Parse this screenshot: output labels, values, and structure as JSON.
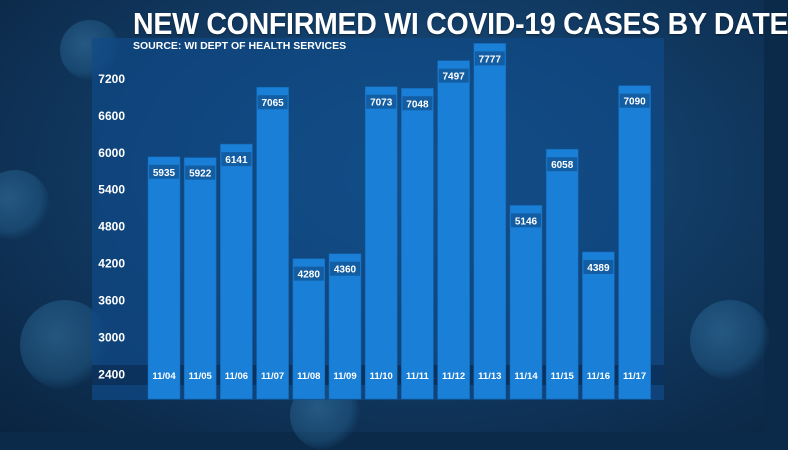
{
  "title": "NEW CONFIRMED WI COVID-19 CASES BY DATE",
  "source": "SOURCE: WI DEPT OF HEALTH SERVICES",
  "colors": {
    "bar": "#1a7fd6",
    "bar_dark": "#1466b3",
    "panel": "#0f4a86",
    "text": "#ffffff",
    "value_box": "#0b3566",
    "axis_band": "#0a2f57"
  },
  "chart_data": {
    "type": "bar",
    "title": "NEW CONFIRMED WI COVID-19 CASES BY DATE",
    "subtitle": "SOURCE: WI DEPT OF HEALTH SERVICES",
    "xlabel": "",
    "ylabel": "",
    "categories": [
      "11/04",
      "11/05",
      "11/06",
      "11/07",
      "11/08",
      "11/09",
      "11/10",
      "11/11",
      "11/12",
      "11/13",
      "11/14",
      "11/15",
      "11/16",
      "11/17"
    ],
    "values": [
      5935,
      5922,
      6141,
      7065,
      4280,
      4360,
      7073,
      7048,
      7497,
      7777,
      5146,
      6058,
      4389,
      7090
    ],
    "ylim": [
      2000,
      7800
    ],
    "yticks": [
      2400,
      3000,
      3600,
      4200,
      4800,
      5400,
      6000,
      6600,
      7200
    ],
    "grid": false,
    "legend": "none"
  }
}
